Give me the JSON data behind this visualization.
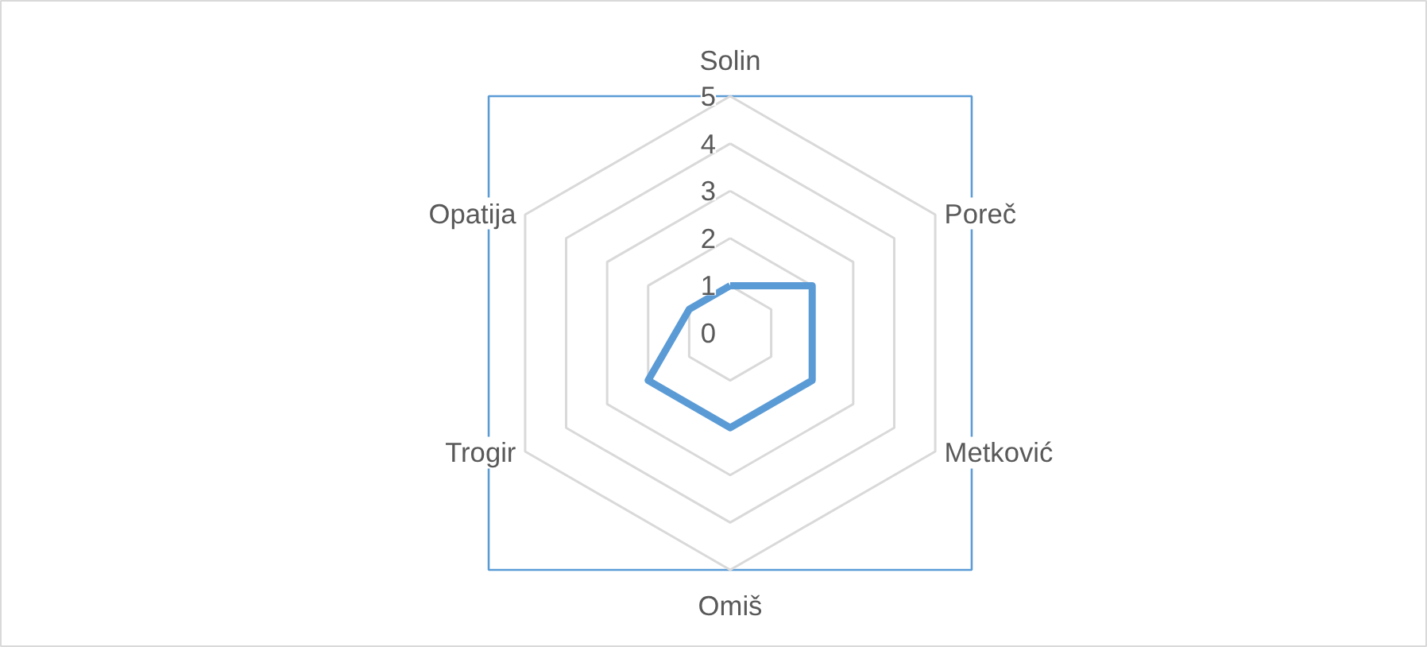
{
  "chart_data": {
    "type": "radar",
    "categories": [
      "Solin",
      "Poreč",
      "Metković",
      "Omiš",
      "Trogir",
      "Opatija"
    ],
    "series": [
      {
        "color": "#5b9bd5",
        "values": [
          1,
          2,
          2,
          2,
          2,
          1
        ]
      }
    ],
    "ylim": [
      0,
      5
    ],
    "yticks": [
      0,
      1,
      2,
      3,
      4,
      5
    ],
    "grid": true,
    "marker": "none",
    "line_style": "solid"
  }
}
